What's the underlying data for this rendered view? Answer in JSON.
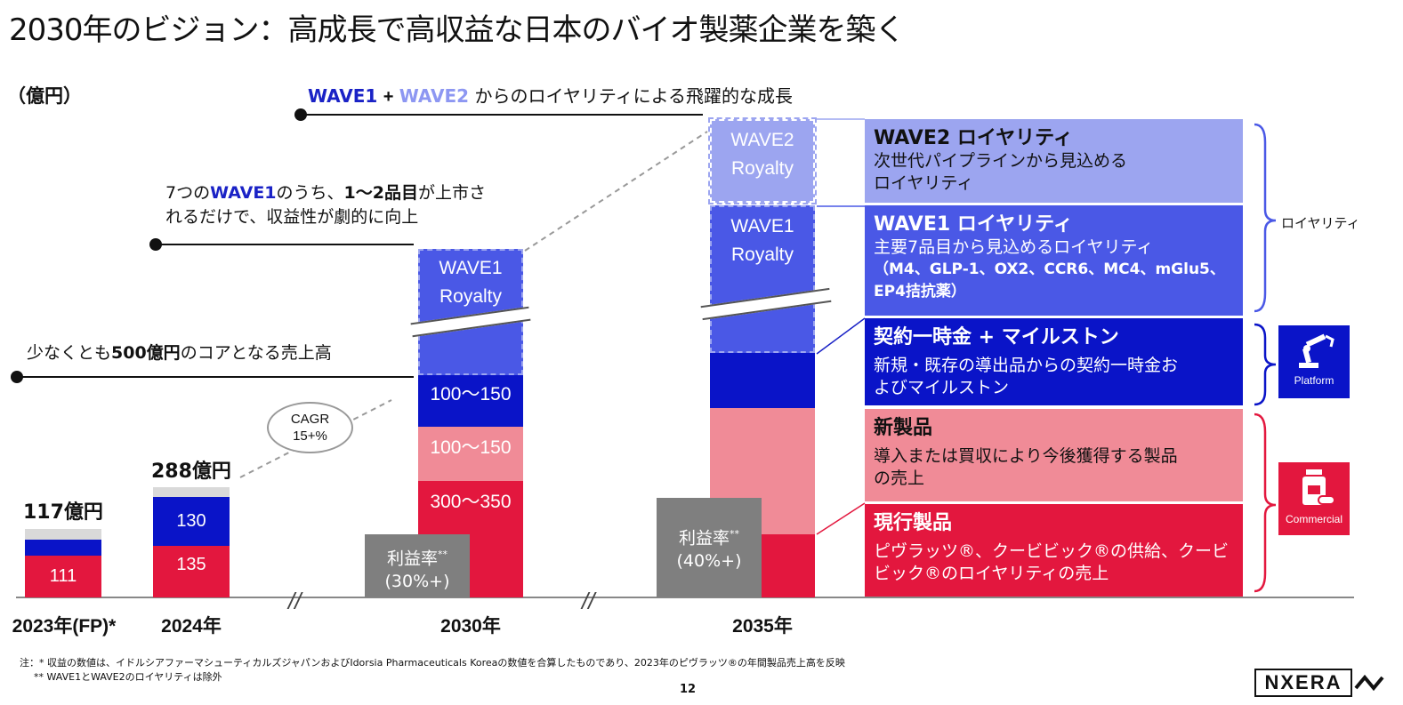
{
  "title": "2030年のビジョン：高成長で高収益な日本のバイオ製薬企業を築く",
  "unit_label": "（億円）",
  "wave_header": {
    "wave1": "WAVE1",
    "plus": "+",
    "wave2": "WAVE2",
    "rest": "からのロイヤリティによる飛躍的な成長"
  },
  "annotation_wave1": {
    "line1_a": "7つの",
    "line1_b": "WAVE1",
    "line1_c": "のうち、",
    "line1_d": "1〜2品目",
    "line1_e": "が上市さ",
    "line2": "れるだけで、収益性が劇的に向上"
  },
  "annotation_core": {
    "a": "少なくとも",
    "b": "500億円",
    "c": "のコアとなる売上高"
  },
  "cagr": {
    "label": "CAGR",
    "value": "15+%"
  },
  "colors": {
    "current": "#e3173e",
    "new_products": "#f08b97",
    "milestone": "#0a14c8",
    "wave1": "#4a58e6",
    "wave2": "#9ca5f0",
    "other": "#d9d9d9",
    "margin": "#7f7f7f"
  },
  "chart_data": {
    "type": "bar",
    "stacked": true,
    "title": "2030年のビジョン：高成長で高収益な日本のバイオ製薬企業を築く",
    "ylabel": "（億円）",
    "categories": [
      "2023年(FP)*",
      "2024年",
      "2030年",
      "2035年"
    ],
    "totals": [
      "117億円",
      "288億円",
      "",
      ""
    ],
    "series": [
      {
        "name": "現行製品",
        "values": [
          111,
          135,
          "300〜350",
          null
        ]
      },
      {
        "name": "新製品",
        "values": [
          null,
          null,
          "100〜150",
          null
        ]
      },
      {
        "name": "契約一時金 + マイルストン",
        "values": [
          null,
          130,
          "100〜150",
          null
        ]
      },
      {
        "name": "WAVE1 Royalty",
        "values": [
          null,
          null,
          null,
          null
        ]
      },
      {
        "name": "WAVE2 Royalty",
        "values": [
          null,
          null,
          null,
          null
        ]
      }
    ],
    "profit_margin": [
      null,
      null,
      "(30%+)",
      "(40%+)"
    ],
    "bars": {
      "y2023": {
        "label": "2023年(FP)*",
        "total": "117億円",
        "current": "111"
      },
      "y2024": {
        "label": "2024年",
        "total": "288億円",
        "current": "135",
        "milestone": "130"
      },
      "y2030": {
        "label": "2030年",
        "current": "300〜350",
        "new": "100〜150",
        "milestone": "100〜150",
        "wave1_line1": "WAVE1",
        "wave1_line2": "Royalty"
      },
      "y2035": {
        "label": "2035年",
        "wave1_line1": "WAVE1",
        "wave1_line2": "Royalty",
        "wave2_line1": "WAVE2",
        "wave2_line2": "Royalty"
      }
    },
    "margin_label": "利益率",
    "margin_mark": "**",
    "margin_2030": "(30%+)",
    "margin_2035": "(40%+)"
  },
  "legend": {
    "wave2": {
      "title": "WAVE2 ロイヤリティ",
      "desc1": "次世代パイプラインから見込める",
      "desc2": "ロイヤリティ"
    },
    "wave1": {
      "title": "WAVE1 ロイヤリティ",
      "desc1": "主要7品目から見込めるロイヤリティ",
      "desc2": "（M4、GLP-1、OX2、CCR6、MC4、mGlu5、",
      "desc3": "EP4拮抗薬）"
    },
    "milestone": {
      "title": "契約一時金 + マイルストン",
      "desc1": "新規・既存の導出品からの契約一時金お",
      "desc2": "よびマイルストン"
    },
    "new": {
      "title": "新製品",
      "desc1": "導入または買収により今後獲得する製品",
      "desc2": "の売上"
    },
    "current": {
      "title": "現行製品",
      "desc1": "ピヴラッツ®、クービビック®の供給、クービ",
      "desc2": "ビック®のロイヤリティの売上"
    }
  },
  "groups": {
    "royalty": "ロイヤリティ",
    "platform": "Platform",
    "commercial": "Commercial"
  },
  "footnotes": {
    "note1": "注：* 収益の数値は、イドルシアファーマシューティカルズジャパンおよびIdorsia Pharmaceuticals Koreaの数値を合算したものであり、2023年のピヴラッツ®の年間製品売上高を反映",
    "note2": "** WAVE1とWAVE2のロイヤリティは除外"
  },
  "page_number": "12",
  "logo_text": "NXERA"
}
